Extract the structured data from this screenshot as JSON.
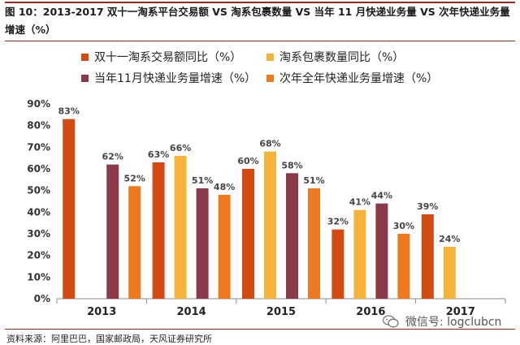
{
  "header": {
    "title": "图 10：2013-2017 双十一淘系平台交易额 VS 淘系包裹数量 VS 当年 11 月快递业务量 VS 次年快递业务量增速（%）"
  },
  "footer": {
    "source": "资料来源：阿里巴巴，国家邮政局，天风证券研究所",
    "watermark": "微信号: logclubcn"
  },
  "colors": {
    "accent_rule": "#9e2a1f"
  },
  "chart_data": {
    "type": "bar",
    "categories": [
      "2013",
      "2014",
      "2015",
      "2016",
      "2017"
    ],
    "ylim": [
      0,
      90
    ],
    "yticks": [
      0,
      10,
      20,
      30,
      40,
      50,
      60,
      70,
      80,
      90
    ],
    "ytick_labels": [
      "0%",
      "10%",
      "20%",
      "30%",
      "40%",
      "50%",
      "60%",
      "70%",
      "80%",
      "90%"
    ],
    "grid": false,
    "legend_position": "top",
    "series": [
      {
        "name": "双十一淘系交易额同比（%）",
        "color": "#d24b12",
        "values": [
          83,
          63,
          60,
          32,
          39
        ],
        "labels": [
          "83%",
          "63%",
          "60%",
          "32%",
          "39%"
        ]
      },
      {
        "name": "淘系包裹数量同比（%）",
        "color": "#f6b33c",
        "values": [
          null,
          66,
          68,
          41,
          24
        ],
        "labels": [
          null,
          "66%",
          "68%",
          "41%",
          "24%"
        ]
      },
      {
        "name": "当年11月快递业务量增速（%）",
        "color": "#8b3a4a",
        "values": [
          62,
          51,
          58,
          44,
          null
        ],
        "labels": [
          "62%",
          "51%",
          "58%",
          "44%",
          null
        ]
      },
      {
        "name": "次年全年快递业务量增速（%）",
        "color": "#ee7a1f",
        "values": [
          52,
          48,
          51,
          30,
          null
        ],
        "labels": [
          "52%",
          "48%",
          "51%",
          "30%",
          null
        ]
      }
    ]
  }
}
